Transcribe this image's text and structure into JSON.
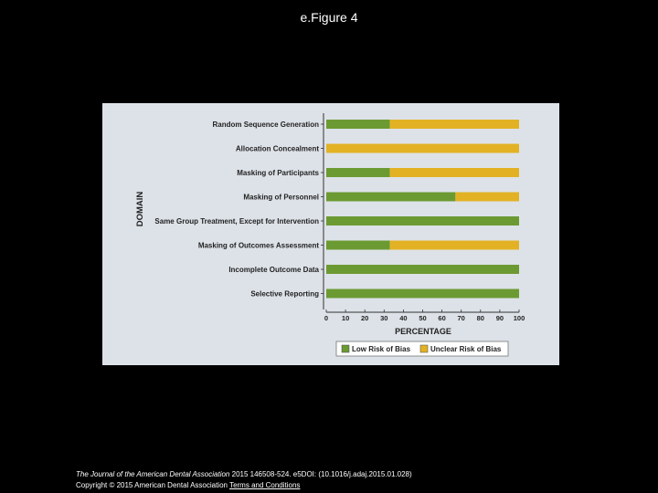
{
  "page": {
    "title": "e.Figure 4"
  },
  "chart_data": {
    "type": "bar",
    "orientation": "horizontal",
    "stacked": true,
    "categories": [
      "Random Sequence Generation",
      "Allocation Concealment",
      "Masking of Participants",
      "Masking of Personnel",
      "Same Group Treatment, Except for Intervention",
      "Masking of Outcomes Assessment",
      "Incomplete Outcome Data",
      "Selective Reporting"
    ],
    "series": [
      {
        "name": "Low Risk of Bias",
        "color": "#6c9a32",
        "values": [
          33,
          0,
          33,
          67,
          100,
          33,
          100,
          100
        ]
      },
      {
        "name": "Unclear Risk of Bias",
        "color": "#e3b224",
        "values": [
          67,
          100,
          67,
          33,
          0,
          67,
          0,
          0
        ]
      }
    ],
    "xlabel": "PERCENTAGE",
    "ylabel": "DOMAIN",
    "xlim": [
      0,
      100
    ],
    "xticks": [
      "0",
      "10",
      "20",
      "30",
      "40",
      "50",
      "60",
      "70",
      "80",
      "90",
      "100"
    ],
    "legend": "bottom",
    "grid": false
  },
  "footer": {
    "journal": "The Journal of the American Dental Association",
    "citation": " 2015 146508-524. e5DOI: (10.1016/j.adaj.2015.01.028)",
    "copyright": "Copyright © 2015 American Dental Association ",
    "link": "Terms and Conditions"
  }
}
